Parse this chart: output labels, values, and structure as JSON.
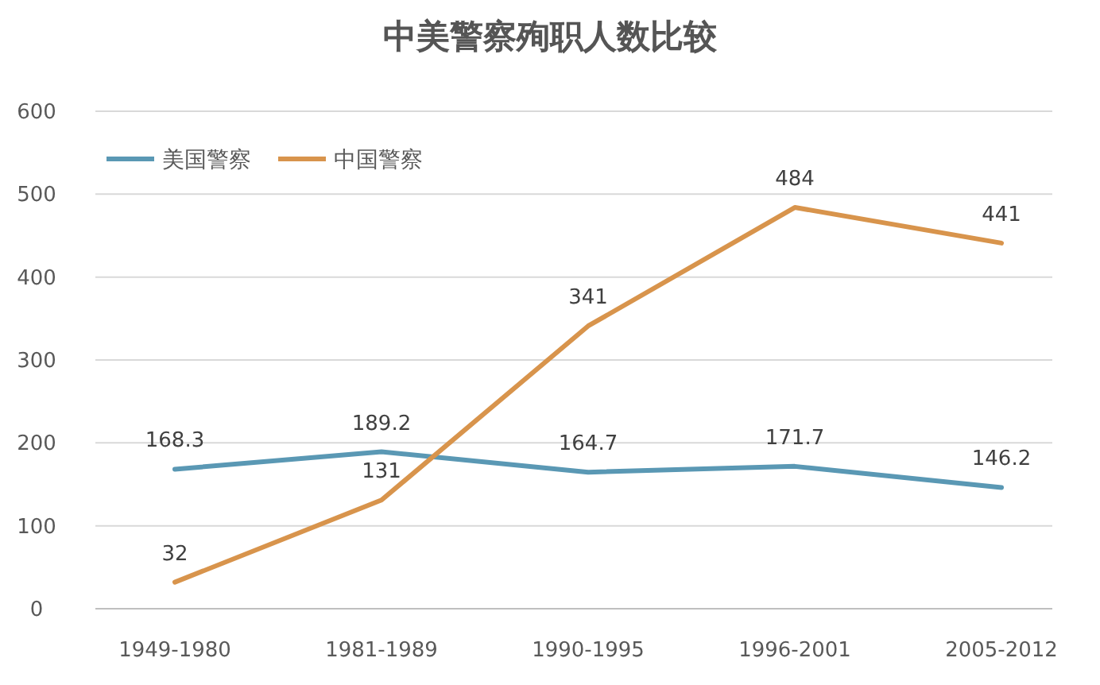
{
  "chart_data": {
    "type": "line",
    "title": "中美警察殉职人数比较",
    "categories": [
      "1949-1980",
      "1981-1989",
      "1990-1995",
      "1996-2001",
      "2005-2012"
    ],
    "series": [
      {
        "name": "美国警察",
        "color": "#5a98b4",
        "values": [
          168.3,
          189.2,
          164.7,
          171.7,
          146.2
        ]
      },
      {
        "name": "中国警察",
        "color": "#d8944c",
        "values": [
          32,
          131,
          341,
          484,
          441
        ]
      }
    ],
    "ylim": [
      0,
      600
    ],
    "yticks": [
      0,
      100,
      200,
      300,
      400,
      500,
      600
    ],
    "grid": "y",
    "legend": "top left",
    "data_labels": true,
    "marker": "none",
    "line_style": "solid"
  }
}
